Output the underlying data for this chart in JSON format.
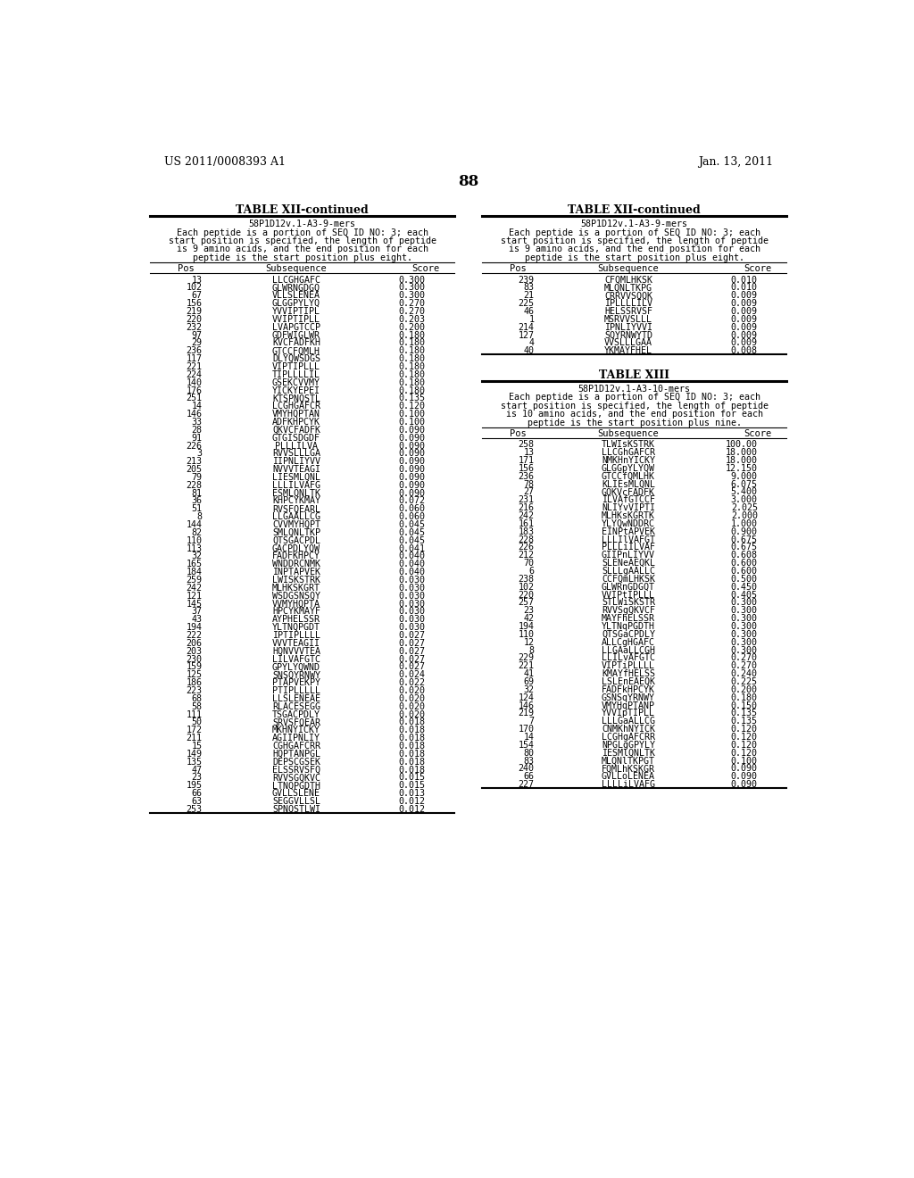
{
  "header_left": "US 2011/0008393 A1",
  "header_right": "Jan. 13, 2011",
  "page_number": "88",
  "left_table1_title": "TABLE XII-continued",
  "right_table1_title": "TABLE XII-continued",
  "left_table1_subtitle": "58P1D12v.1-A3-9-mers\nEach peptide is a portion of SEQ ID NO: 3; each\nstart position is specified, the length of peptide\nis 9 amino acids, and the end position for each\npeptide is the start position plus eight.",
  "right_table1_subtitle": "58P1D12v.1-A3-9-mers\nEach peptide is a portion of SEQ ID NO: 3; each\nstart position is specified, the length of peptide\nis 9 amino acids, and the end position for each\npeptide is the start position plus eight.",
  "left_table1_data": [
    [
      "13",
      "LLCGHGAFC",
      "0.300"
    ],
    [
      "102",
      "GLWRNGDGQ",
      "0.300"
    ],
    [
      "67",
      "VLLSLENEA",
      "0.300"
    ],
    [
      "156",
      "GLGGPYLYQ",
      "0.270"
    ],
    [
      "219",
      "YVVIPTIPL",
      "0.270"
    ],
    [
      "220",
      "VVIPTIPLL",
      "0.203"
    ],
    [
      "232",
      "LVAPGTCCP",
      "0.200"
    ],
    [
      "97",
      "GDFWIGLWR",
      "0.180"
    ],
    [
      "29",
      "KVCFADFKH",
      "0.180"
    ],
    [
      "236",
      "GTCCFQMLH",
      "0.180"
    ],
    [
      "117",
      "DLYQWSDGS",
      "0.180"
    ],
    [
      "221",
      "VIPTIPLLL",
      "0.180"
    ],
    [
      "224",
      "TIPLLLLIL",
      "0.180"
    ],
    [
      "140",
      "GSEKCVVMY",
      "0.180"
    ],
    [
      "176",
      "YICKYEPEI",
      "0.180"
    ],
    [
      "251",
      "KTSPNQSTL",
      "0.135"
    ],
    [
      "14",
      "LCGHGAFCR",
      "0.120"
    ],
    [
      "146",
      "VMYHQPTAN",
      "0.100"
    ],
    [
      "33",
      "ADFKHPCYK",
      "0.100"
    ],
    [
      "28",
      "QKVCFADFK",
      "0.090"
    ],
    [
      "91",
      "GTGISDGDF",
      "0.090"
    ],
    [
      "226",
      "PLLLILVA",
      "0.090"
    ],
    [
      "3",
      "RVVSLLLGA",
      "0.090"
    ],
    [
      "213",
      "IIPNLIYVV",
      "0.090"
    ],
    [
      "205",
      "NVVVTEAGI",
      "0.090"
    ],
    [
      "79",
      "LIESMLQNL",
      "0.090"
    ],
    [
      "228",
      "LLLILVAFG",
      "0.090"
    ],
    [
      "81",
      "ESMLQNLTK",
      "0.090"
    ],
    [
      "36",
      "KHPCYKMAY",
      "0.072"
    ],
    [
      "51",
      "RVSFQEARL",
      "0.060"
    ],
    [
      "8",
      "LLGAALLCG",
      "0.060"
    ],
    [
      "144",
      "CVVMYHQPT",
      "0.045"
    ],
    [
      "82",
      "SMLQNLTKP",
      "0.045"
    ],
    [
      "110",
      "QTSGACPDL",
      "0.045"
    ],
    [
      "113",
      "GACPDLYQW",
      "0.041"
    ],
    [
      "32",
      "FADFKHPCY",
      "0.040"
    ],
    [
      "165",
      "WNDDRCNMK",
      "0.040"
    ],
    [
      "184",
      "INPTAPVEK",
      "0.040"
    ],
    [
      "259",
      "LWISKSTRK",
      "0.030"
    ],
    [
      "242",
      "MLHKSKGRT",
      "0.030"
    ],
    [
      "121",
      "WSDGSNSQY",
      "0.030"
    ],
    [
      "145",
      "VVMYHQPTA",
      "0.030"
    ],
    [
      "37",
      "HPCYKMAYF",
      "0.030"
    ],
    [
      "43",
      "AYPHELSSR",
      "0.030"
    ],
    [
      "194",
      "YLTNQPGDT",
      "0.030"
    ],
    [
      "222",
      "IPTIPLLLL",
      "0.027"
    ],
    [
      "206",
      "VVVTEAGII",
      "0.027"
    ],
    [
      "203",
      "HQNVVVTEA",
      "0.027"
    ],
    [
      "230",
      "LILVAFGTC",
      "0.027"
    ],
    [
      "159",
      "GPYLYQWND",
      "0.027"
    ],
    [
      "125",
      "SNSQYRNWY",
      "0.024"
    ],
    [
      "186",
      "PTAPVEKPY",
      "0.022"
    ],
    [
      "223",
      "PTIPLLLLL",
      "0.020"
    ],
    [
      "68",
      "LLSLENEAE",
      "0.020"
    ],
    [
      "58",
      "RLACESEGG",
      "0.020"
    ],
    [
      "111",
      "TSGACPDLY",
      "0.020"
    ],
    [
      "50",
      "SRVSFQEAR",
      "0.018"
    ],
    [
      "172",
      "MKHNYICKY",
      "0.018"
    ],
    [
      "211",
      "AGIIPNLIY",
      "0.018"
    ],
    [
      "15",
      "CGHGAFCRR",
      "0.018"
    ],
    [
      "149",
      "HQPTANPGL",
      "0.018"
    ],
    [
      "135",
      "DEPSCGSEK",
      "0.018"
    ],
    [
      "47",
      "ELSSRVSFQ",
      "0.018"
    ],
    [
      "23",
      "RVVSGQKVC",
      "0.015"
    ],
    [
      "195",
      "LTNQPGDTH",
      "0.015"
    ],
    [
      "66",
      "GVLLSLENE",
      "0.013"
    ],
    [
      "63",
      "SEGGVLLSL",
      "0.012"
    ],
    [
      "253",
      "SPNQSTLWI",
      "0.012"
    ]
  ],
  "right_table1_data": [
    [
      "239",
      "CFQMLHKSK",
      "0.010"
    ],
    [
      "83",
      "MLQNLTKPG",
      "0.010"
    ],
    [
      "21",
      "CRRVVSQQK",
      "0.009"
    ],
    [
      "225",
      "IPLLLLILV",
      "0.009"
    ],
    [
      "46",
      "HELSSRVSF",
      "0.009"
    ],
    [
      "1",
      "MSRVVSLLL",
      "0.009"
    ],
    [
      "214",
      "IPNLIYVVI",
      "0.009"
    ],
    [
      "127",
      "SQYRNWYTD",
      "0.009"
    ],
    [
      "4",
      "VVSLLLGAA",
      "0.009"
    ],
    [
      "40",
      "YKMAYFHEL",
      "0.008"
    ]
  ],
  "table13_title": "TABLE XIII",
  "table13_subtitle": "58P1D12v.1-A3-10-mers\nEach peptide is a portion of SEQ ID NO: 3; each\nstart position is specified, the length of peptide\nis 10 amino acids, and the end position for each\npeptide is the start position plus nine.",
  "right_table2_data": [
    [
      "258",
      "TLWIsKSTRK",
      "100.00"
    ],
    [
      "13",
      "LLCGhGAFCR",
      "18.000"
    ],
    [
      "171",
      "NMKHnYICKY",
      "18.000"
    ],
    [
      "156",
      "GLGGpYLYQW",
      "12.150"
    ],
    [
      "236",
      "GTCCfQMLHK",
      "9.000"
    ],
    [
      "78",
      "KLIEsMLQNL",
      "6.075"
    ],
    [
      "27",
      "GQKVcFADFK",
      "5.400"
    ],
    [
      "231",
      "ILVAfGTCCF",
      "3.000"
    ],
    [
      "216",
      "NLIYvVIPTI",
      "2.025"
    ],
    [
      "242",
      "MLHKsKGRTK",
      "2.000"
    ],
    [
      "161",
      "YLYQwNDDRC",
      "1.000"
    ],
    [
      "183",
      "EINPtAPVEK",
      "0.900"
    ],
    [
      "228",
      "LLLIlVAFGT",
      "0.675"
    ],
    [
      "226",
      "PLLLiILVAF",
      "0.675"
    ],
    [
      "212",
      "GIIPnLIYVV",
      "0.608"
    ],
    [
      "70",
      "SLENeAEQKL",
      "0.600"
    ],
    [
      "6",
      "SLLLgAALLC",
      "0.600"
    ],
    [
      "238",
      "CCFQmLHKSK",
      "0.500"
    ],
    [
      "102",
      "GLWRnGDGQT",
      "0.450"
    ],
    [
      "220",
      "VVIPtIPLLL",
      "0.405"
    ],
    [
      "257",
      "STLWiSKSTR",
      "0.300"
    ],
    [
      "23",
      "RVVSgQKVCF",
      "0.300"
    ],
    [
      "42",
      "MAYFhELSSR",
      "0.300"
    ],
    [
      "194",
      "YLTNqPGDTH",
      "0.300"
    ],
    [
      "110",
      "QTSGaCPDLY",
      "0.300"
    ],
    [
      "12",
      "ALLCgHGAFC",
      "0.300"
    ],
    [
      "8",
      "LLGAaLLCGH",
      "0.300"
    ],
    [
      "229",
      "LLILvAFGTC",
      "0.270"
    ],
    [
      "221",
      "VIPTiPLLLL",
      "0.270"
    ],
    [
      "41",
      "KMAYfHELSS",
      "0.240"
    ],
    [
      "69",
      "LSLEnEAEQK",
      "0.225"
    ],
    [
      "32",
      "FADFkHPCYK",
      "0.200"
    ],
    [
      "124",
      "GSNSqYRNWY",
      "0.180"
    ],
    [
      "146",
      "VMYHqPTANP",
      "0.150"
    ],
    [
      "219",
      "YVVIpTIPLL",
      "0.135"
    ],
    [
      "7",
      "LLLGaALLCG",
      "0.135"
    ],
    [
      "170",
      "CNMKhNYICK",
      "0.120"
    ],
    [
      "14",
      "LCGHgAFCRR",
      "0.120"
    ],
    [
      "154",
      "NPGLgGPYLY",
      "0.120"
    ],
    [
      "80",
      "IESMlQNLTK",
      "0.120"
    ],
    [
      "83",
      "MLQNlTKPGT",
      "0.100"
    ],
    [
      "240",
      "FQMLhKSKGR",
      "0.090"
    ],
    [
      "66",
      "GVLLoLENEA",
      "0.090"
    ],
    [
      "227",
      "LLLLiLVAFG",
      "0.090"
    ]
  ]
}
